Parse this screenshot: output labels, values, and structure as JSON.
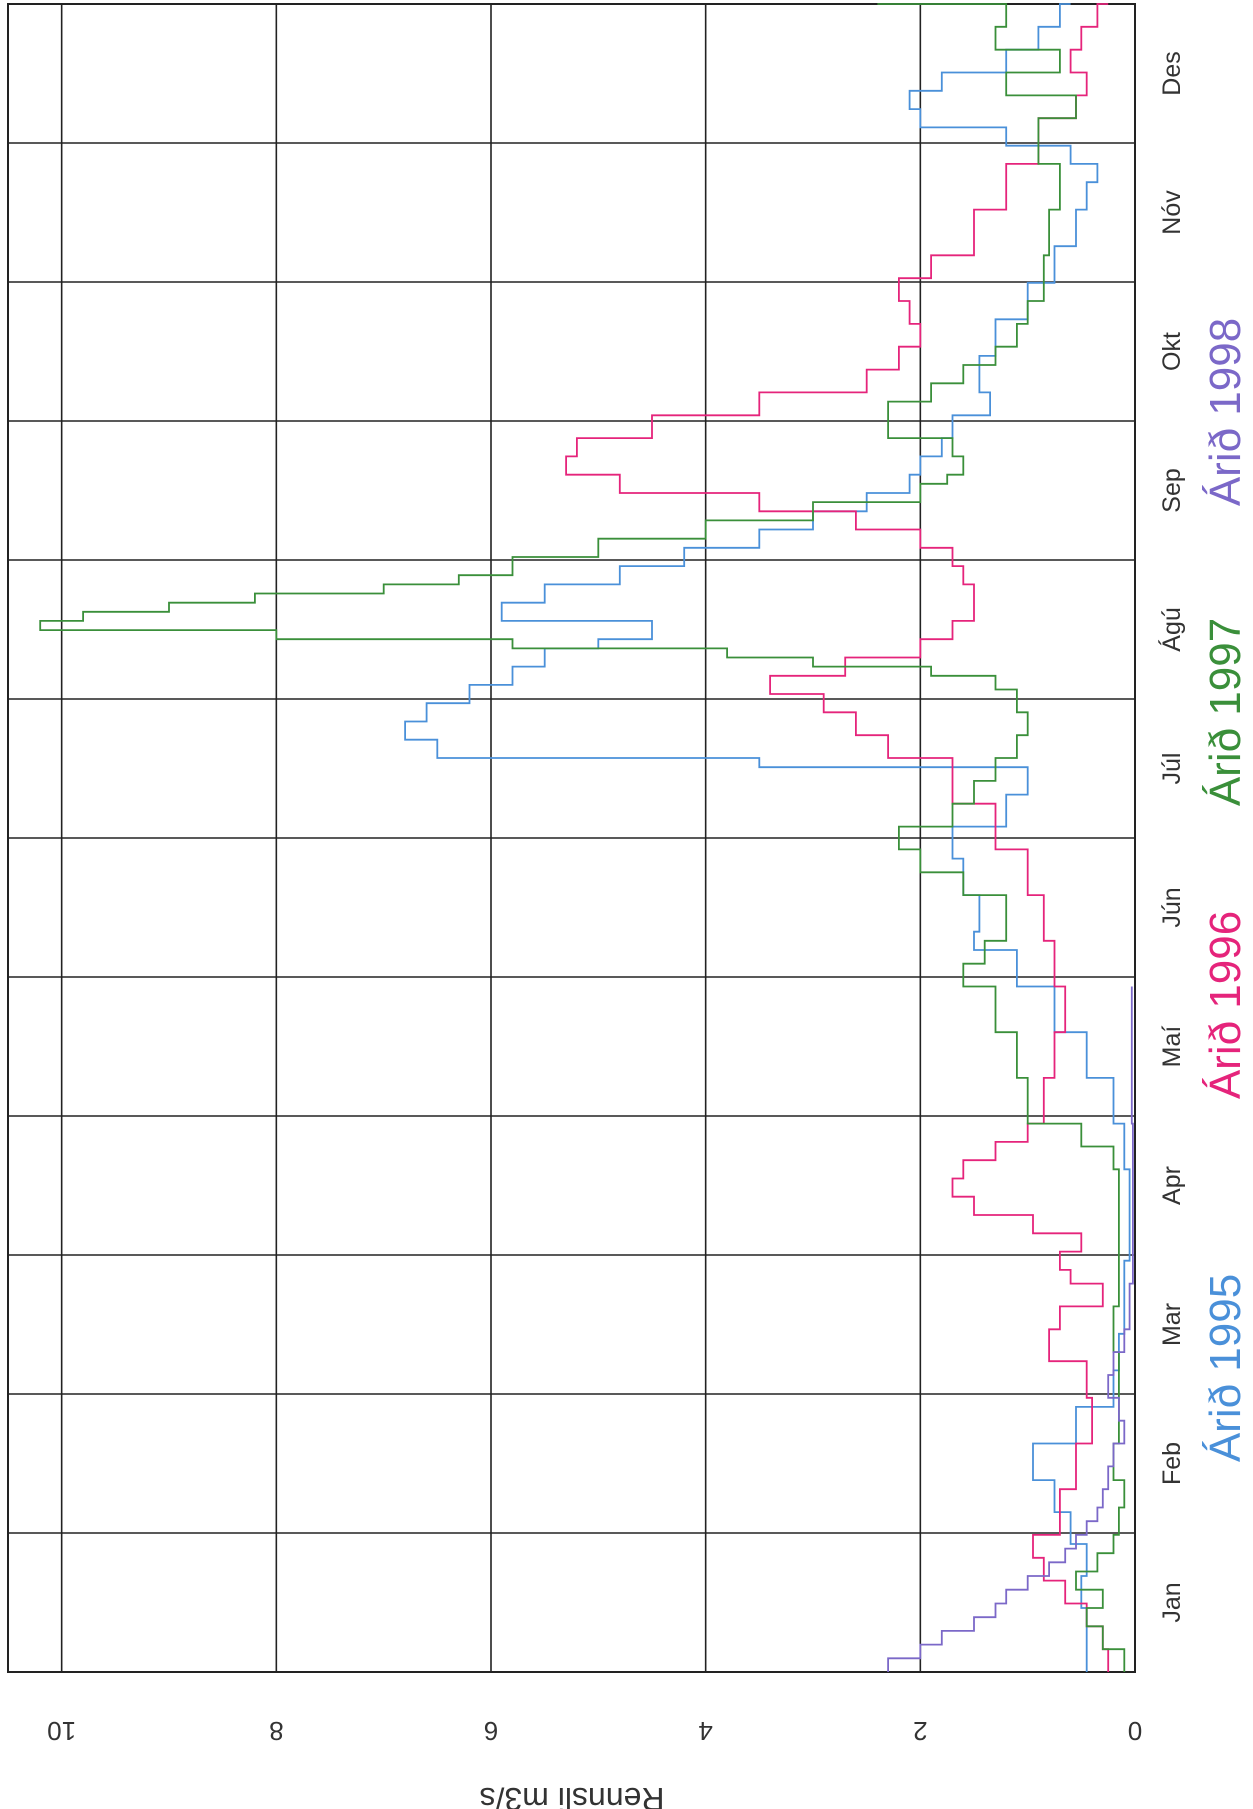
{
  "chart_data": {
    "type": "line",
    "ylabel": "Rennsli m3/s",
    "ylim": [
      0,
      10.5
    ],
    "yticks": [
      "0",
      "2",
      "4",
      "6",
      "8",
      "10"
    ],
    "months": [
      "Jan",
      "Feb",
      "Mar",
      "Apr",
      "Maí",
      "Jún",
      "Júl",
      "Ágú",
      "Sep",
      "Okt",
      "Nóv",
      "Des"
    ],
    "grid": true,
    "legend_placement": "bottom-right",
    "series": [
      {
        "name": "Árið 1995",
        "color": "#4a90d9",
        "x": [
          0,
          7,
          14,
          21,
          28,
          35,
          42,
          50,
          58,
          66,
          74,
          82,
          90,
          100,
          110,
          120,
          130,
          140,
          150,
          158,
          162,
          170,
          178,
          185,
          192,
          196,
          198,
          200,
          204,
          208,
          212,
          216,
          220,
          224,
          226,
          230,
          234,
          238,
          242,
          246,
          250,
          254,
          258,
          262,
          266,
          270,
          275,
          280,
          288,
          296,
          304,
          312,
          320,
          326,
          330,
          334,
          338,
          342,
          346,
          350,
          355,
          360,
          365
        ],
        "y": [
          0.45,
          0.45,
          0.5,
          0.45,
          0.6,
          0.75,
          0.95,
          0.55,
          0.2,
          0.15,
          0.1,
          0.1,
          0.05,
          0.05,
          0.1,
          0.2,
          0.45,
          0.75,
          1.1,
          1.5,
          1.45,
          1.6,
          1.7,
          1.2,
          1.0,
          1.0,
          3.5,
          6.5,
          6.8,
          6.6,
          6.2,
          5.8,
          5.5,
          5.0,
          4.5,
          5.9,
          5.5,
          4.8,
          4.2,
          3.5,
          3.0,
          2.5,
          2.1,
          2.0,
          1.8,
          1.7,
          1.35,
          1.45,
          1.3,
          1.0,
          0.75,
          0.55,
          0.45,
          0.35,
          0.6,
          1.2,
          2.0,
          2.1,
          1.8,
          1.2,
          0.9,
          0.7,
          0.6
        ]
      },
      {
        "name": "Árið 1996",
        "color": "#e5247b",
        "x": [
          0,
          5,
          10,
          15,
          20,
          25,
          30,
          40,
          50,
          60,
          68,
          75,
          80,
          85,
          88,
          92,
          96,
          100,
          104,
          108,
          112,
          116,
          120,
          125,
          130,
          140,
          150,
          160,
          170,
          180,
          190,
          200,
          205,
          210,
          214,
          218,
          222,
          226,
          230,
          234,
          238,
          242,
          246,
          250,
          254,
          258,
          262,
          266,
          270,
          275,
          280,
          285,
          290,
          295,
          300,
          305,
          310,
          320,
          330,
          340,
          345,
          350,
          355,
          360,
          365
        ],
        "y": [
          0.25,
          0.3,
          0.45,
          0.65,
          0.85,
          0.95,
          0.7,
          0.55,
          0.4,
          0.45,
          0.8,
          0.7,
          0.3,
          0.6,
          0.7,
          0.5,
          0.95,
          1.5,
          1.7,
          1.6,
          1.3,
          1.0,
          0.85,
          0.85,
          0.75,
          0.65,
          0.75,
          0.85,
          1.0,
          1.3,
          1.7,
          2.3,
          2.6,
          2.9,
          3.4,
          2.7,
          2.0,
          1.7,
          1.5,
          1.5,
          1.6,
          1.7,
          2.0,
          2.6,
          3.5,
          4.8,
          5.3,
          5.2,
          4.5,
          3.5,
          2.5,
          2.2,
          2.0,
          2.1,
          2.2,
          1.9,
          1.5,
          1.2,
          0.9,
          0.55,
          0.45,
          0.6,
          0.5,
          0.35,
          0.25
        ]
      },
      {
        "name": "Árið 1997",
        "color": "#3a8f3a",
        "x": [
          0,
          5,
          10,
          14,
          18,
          22,
          26,
          30,
          36,
          42,
          50,
          60,
          70,
          80,
          90,
          100,
          110,
          115,
          120,
          130,
          140,
          150,
          155,
          160,
          165,
          170,
          175,
          180,
          185,
          190,
          195,
          200,
          205,
          210,
          215,
          218,
          220,
          222,
          224,
          226,
          228,
          230,
          232,
          234,
          236,
          238,
          240,
          244,
          248,
          252,
          256,
          260,
          262,
          266,
          270,
          274,
          278,
          282,
          286,
          290,
          295,
          300,
          310,
          320,
          330,
          340,
          345,
          350,
          355,
          360,
          365
        ],
        "y": [
          0.1,
          0.3,
          0.45,
          0.3,
          0.55,
          0.35,
          0.2,
          0.15,
          0.1,
          0.2,
          0.15,
          0.15,
          0.2,
          0.15,
          0.15,
          0.15,
          0.2,
          0.5,
          1.0,
          1.1,
          1.3,
          1.6,
          1.4,
          1.2,
          1.2,
          1.6,
          2.0,
          2.2,
          1.7,
          1.5,
          1.3,
          1.1,
          1.0,
          1.1,
          1.3,
          1.9,
          3.0,
          3.8,
          5.8,
          8.0,
          10.2,
          9.8,
          9.0,
          8.2,
          7.0,
          6.3,
          5.8,
          5.0,
          4.0,
          3.0,
          2.0,
          1.75,
          1.6,
          1.7,
          2.3,
          2.3,
          1.9,
          1.6,
          1.3,
          1.1,
          1.0,
          0.85,
          0.8,
          0.7,
          0.9,
          0.55,
          1.2,
          0.7,
          1.3,
          1.2,
          2.4
        ]
      },
      {
        "name": "Árið 1998",
        "color": "#7b68c8",
        "x": [
          0,
          3,
          6,
          9,
          12,
          15,
          18,
          21,
          24,
          27,
          30,
          33,
          36,
          40,
          45,
          50,
          55,
          60,
          65,
          70,
          75,
          80,
          85,
          90,
          95,
          100,
          110,
          120,
          130,
          140,
          145,
          150
        ],
        "y": [
          2.3,
          2.0,
          1.8,
          1.5,
          1.3,
          1.2,
          1.0,
          0.8,
          0.65,
          0.55,
          0.45,
          0.35,
          0.3,
          0.25,
          0.2,
          0.1,
          0.15,
          0.25,
          0.2,
          0.1,
          0.05,
          0.05,
          0.02,
          0.02,
          0.02,
          0.02,
          0.02,
          0.03,
          0.03,
          0.03,
          0.03,
          0.03
        ]
      }
    ]
  }
}
